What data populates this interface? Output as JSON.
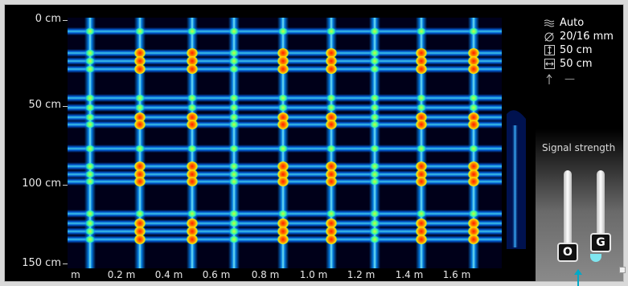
{
  "y_axis": {
    "labels": [
      "0 cm",
      "50 cm",
      "100 cm",
      "150 cm"
    ]
  },
  "x_axis": {
    "labels": [
      "m",
      "0.2 m",
      "0.4 m",
      "0.6 m",
      "0.8 m",
      "1.0 m",
      "1.2 m",
      "1.4 m",
      "1.6 m"
    ]
  },
  "panel": {
    "items": [
      {
        "icon": "layers-icon",
        "value": "Auto"
      },
      {
        "icon": "diameter-icon",
        "value": "20/16 mm"
      },
      {
        "icon": "vertical-spacing-icon",
        "value": "50 cm"
      },
      {
        "icon": "horizontal-spacing-icon",
        "value": "50 cm"
      },
      {
        "icon": "arrow-up-icon",
        "value": "—"
      }
    ],
    "signal_title": "Signal strength",
    "knob_left_label": "O",
    "knob_right_label": "G"
  },
  "colors": {
    "background": "#000019",
    "rebar_cool": "#00a0ff",
    "rebar_hot": "#ff2200",
    "knob_g_tip": "#7fe6f0",
    "pointer": "#00a9c8"
  }
}
